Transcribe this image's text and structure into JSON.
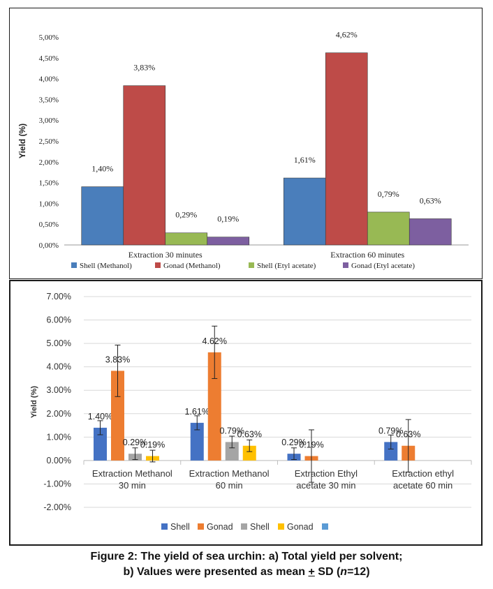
{
  "chart_data": [
    {
      "type": "bar",
      "panel": "a",
      "categories": [
        "Extraction 30 minutes",
        "Extraction 60 minutes"
      ],
      "series": [
        {
          "name": "Shell (Methanol)",
          "values": [
            1.4,
            1.61
          ],
          "labels": [
            "1,40%",
            "1,61%"
          ],
          "color": "#4a7ebb"
        },
        {
          "name": "Gonad (Methanol)",
          "values": [
            3.83,
            4.62
          ],
          "labels": [
            "3,83%",
            "4,62%"
          ],
          "color": "#be4b48"
        },
        {
          "name": "Shell (Etyl acetate)",
          "values": [
            0.29,
            0.79
          ],
          "labels": [
            "0,29%",
            "0,79%"
          ],
          "color": "#98b954"
        },
        {
          "name": "Gonad (Etyl acetate)",
          "values": [
            0.19,
            0.63
          ],
          "labels": [
            "0,19%",
            "0,63%"
          ],
          "color": "#7d5fa0"
        }
      ],
      "ylabel": "Yield (%)",
      "ylim": [
        0,
        5
      ],
      "yticks": [
        "0,00%",
        "0,50%",
        "1,00%",
        "1,50%",
        "2,00%",
        "2,50%",
        "3,00%",
        "3,50%",
        "4,00%",
        "4,50%",
        "5,00%"
      ],
      "grid": false,
      "legend": "bottom"
    },
    {
      "type": "bar",
      "panel": "b",
      "categories": [
        [
          "Extraction Methanol",
          "30 min"
        ],
        [
          "Extraction Methanol",
          "60 min"
        ],
        [
          "Extraction Ethyl",
          "acetate 30 min"
        ],
        [
          "Extraction ethyl",
          "acetate 60 min"
        ]
      ],
      "bars": [
        [
          {
            "value": 1.4,
            "sd": 0.3,
            "label": "1.40%",
            "color": "#4472c4"
          },
          {
            "value": 3.83,
            "sd": 1.1,
            "label": "3.83%",
            "color": "#ed7d31"
          },
          {
            "value": 0.29,
            "sd": 0.25,
            "label": "0.29%",
            "color": "#a5a5a5"
          },
          {
            "value": 0.19,
            "sd": 0.25,
            "label": "0.19%",
            "color": "#ffc000"
          }
        ],
        [
          {
            "value": 1.61,
            "sd": 0.3,
            "label": "1.61%",
            "color": "#4472c4"
          },
          {
            "value": 4.62,
            "sd": 1.12,
            "label": "4.62%",
            "color": "#ed7d31"
          },
          {
            "value": 0.79,
            "sd": 0.25,
            "label": "0.79%",
            "color": "#a5a5a5"
          },
          {
            "value": 0.63,
            "sd": 0.25,
            "label": "0.63%",
            "color": "#ffc000"
          }
        ],
        [
          {
            "value": 0.29,
            "sd": 0.25,
            "label": "0.29%",
            "color": "#4472c4"
          },
          {
            "value": 0.19,
            "sd": 1.12,
            "label": "0.19%",
            "color": "#ed7d31"
          }
        ],
        [
          {
            "value": 0.79,
            "sd": 0.3,
            "label": "0.79%",
            "color": "#4472c4"
          },
          {
            "value": 0.63,
            "sd": 1.12,
            "label": "0.63%",
            "color": "#ed7d31"
          }
        ]
      ],
      "legend_items": [
        {
          "name": "Shell",
          "color": "#4472c4"
        },
        {
          "name": "Gonad",
          "color": "#ed7d31"
        },
        {
          "name": "Shell",
          "color": "#a5a5a5"
        },
        {
          "name": "Gonad",
          "color": "#ffc000"
        },
        {
          "name": "",
          "color": "#5b9bd5"
        }
      ],
      "ylabel": "Yield (%)",
      "ylim": [
        -2,
        7
      ],
      "yticks": [
        "-2.00%",
        "-1.00%",
        "0.00%",
        "1.00%",
        "2.00%",
        "3.00%",
        "4.00%",
        "5.00%",
        "6.00%",
        "7.00%"
      ],
      "grid": true,
      "legend": "bottom"
    }
  ],
  "caption": {
    "line1": "Figure 2: The yield of sea urchin: a) Total yield per solvent;",
    "line2_pre": "b) Values were presented as mean ",
    "line2_pm": "+",
    "line2_mid": " SD (",
    "line2_n": "n",
    "line2_post": "=12)"
  }
}
